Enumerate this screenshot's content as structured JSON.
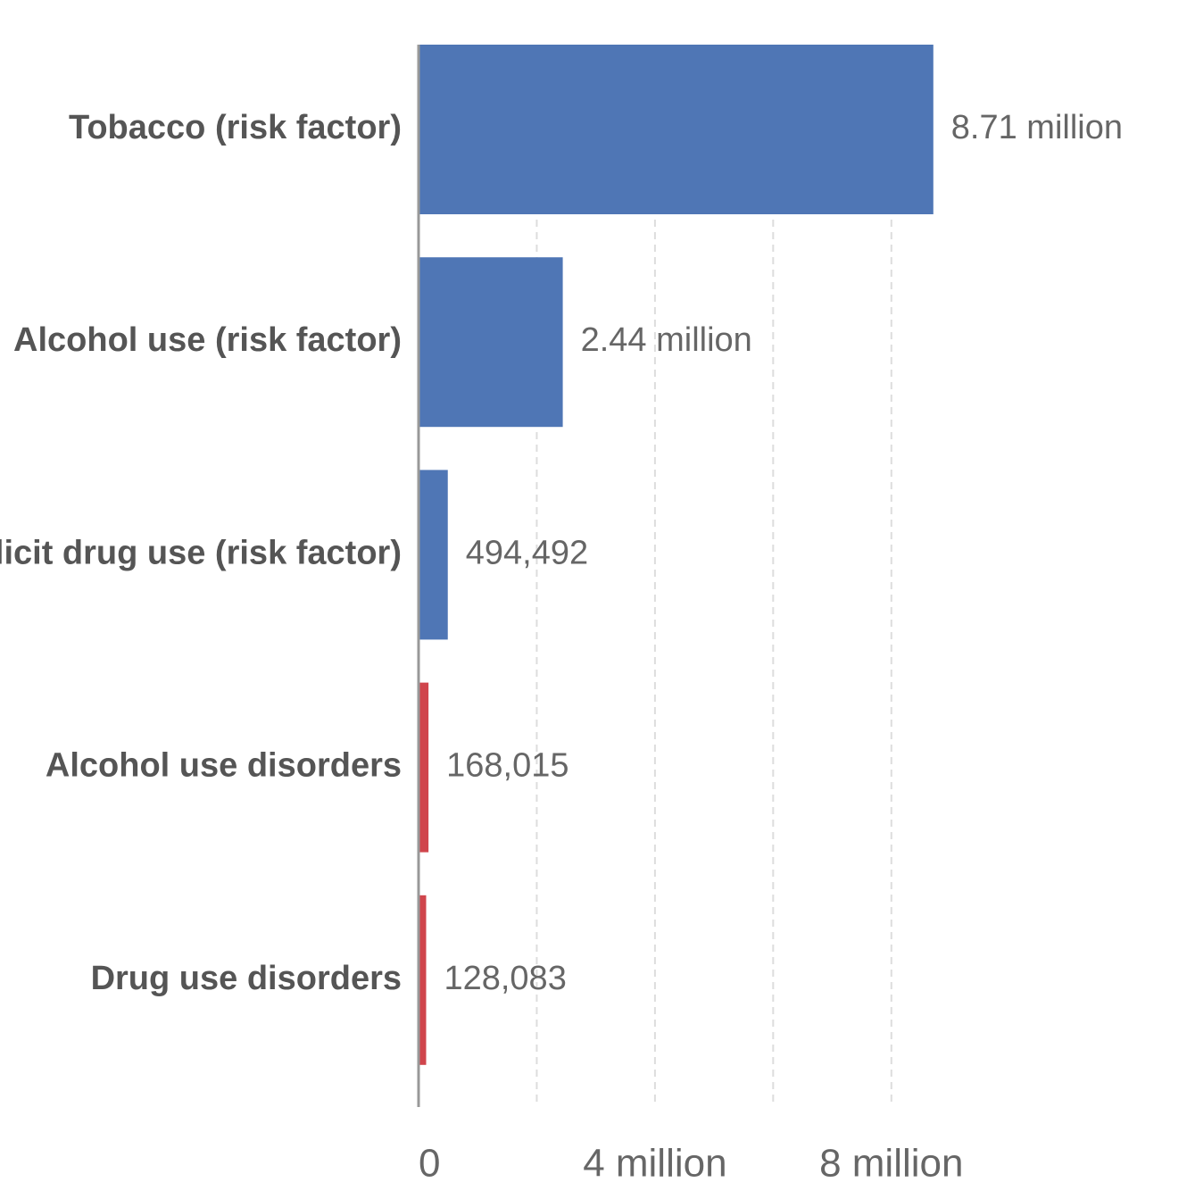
{
  "chart_data": {
    "type": "bar",
    "orientation": "horizontal",
    "categories": [
      "Tobacco (risk factor)",
      "Alcohol use (risk factor)",
      "Illicit drug use (risk factor)",
      "Alcohol use disorders",
      "Drug use disorders"
    ],
    "values": [
      8710000,
      2440000,
      494492,
      168015,
      128083
    ],
    "value_labels": [
      "8.71 million",
      "2.44 million",
      "494,492",
      "168,015",
      "128,083"
    ],
    "colors": [
      "#4f76b5",
      "#4f76b5",
      "#4f76b5",
      "#d0454c",
      "#d0454c"
    ],
    "xlim": [
      0,
      9000000
    ],
    "x_ticks": [
      0,
      4000000,
      8000000
    ],
    "x_tick_labels": [
      "0",
      "4 million",
      "8 million"
    ],
    "x_gridlines": [
      2000000,
      4000000,
      6000000,
      8000000
    ],
    "grid": true,
    "title": "",
    "xlabel": "",
    "ylabel": ""
  }
}
